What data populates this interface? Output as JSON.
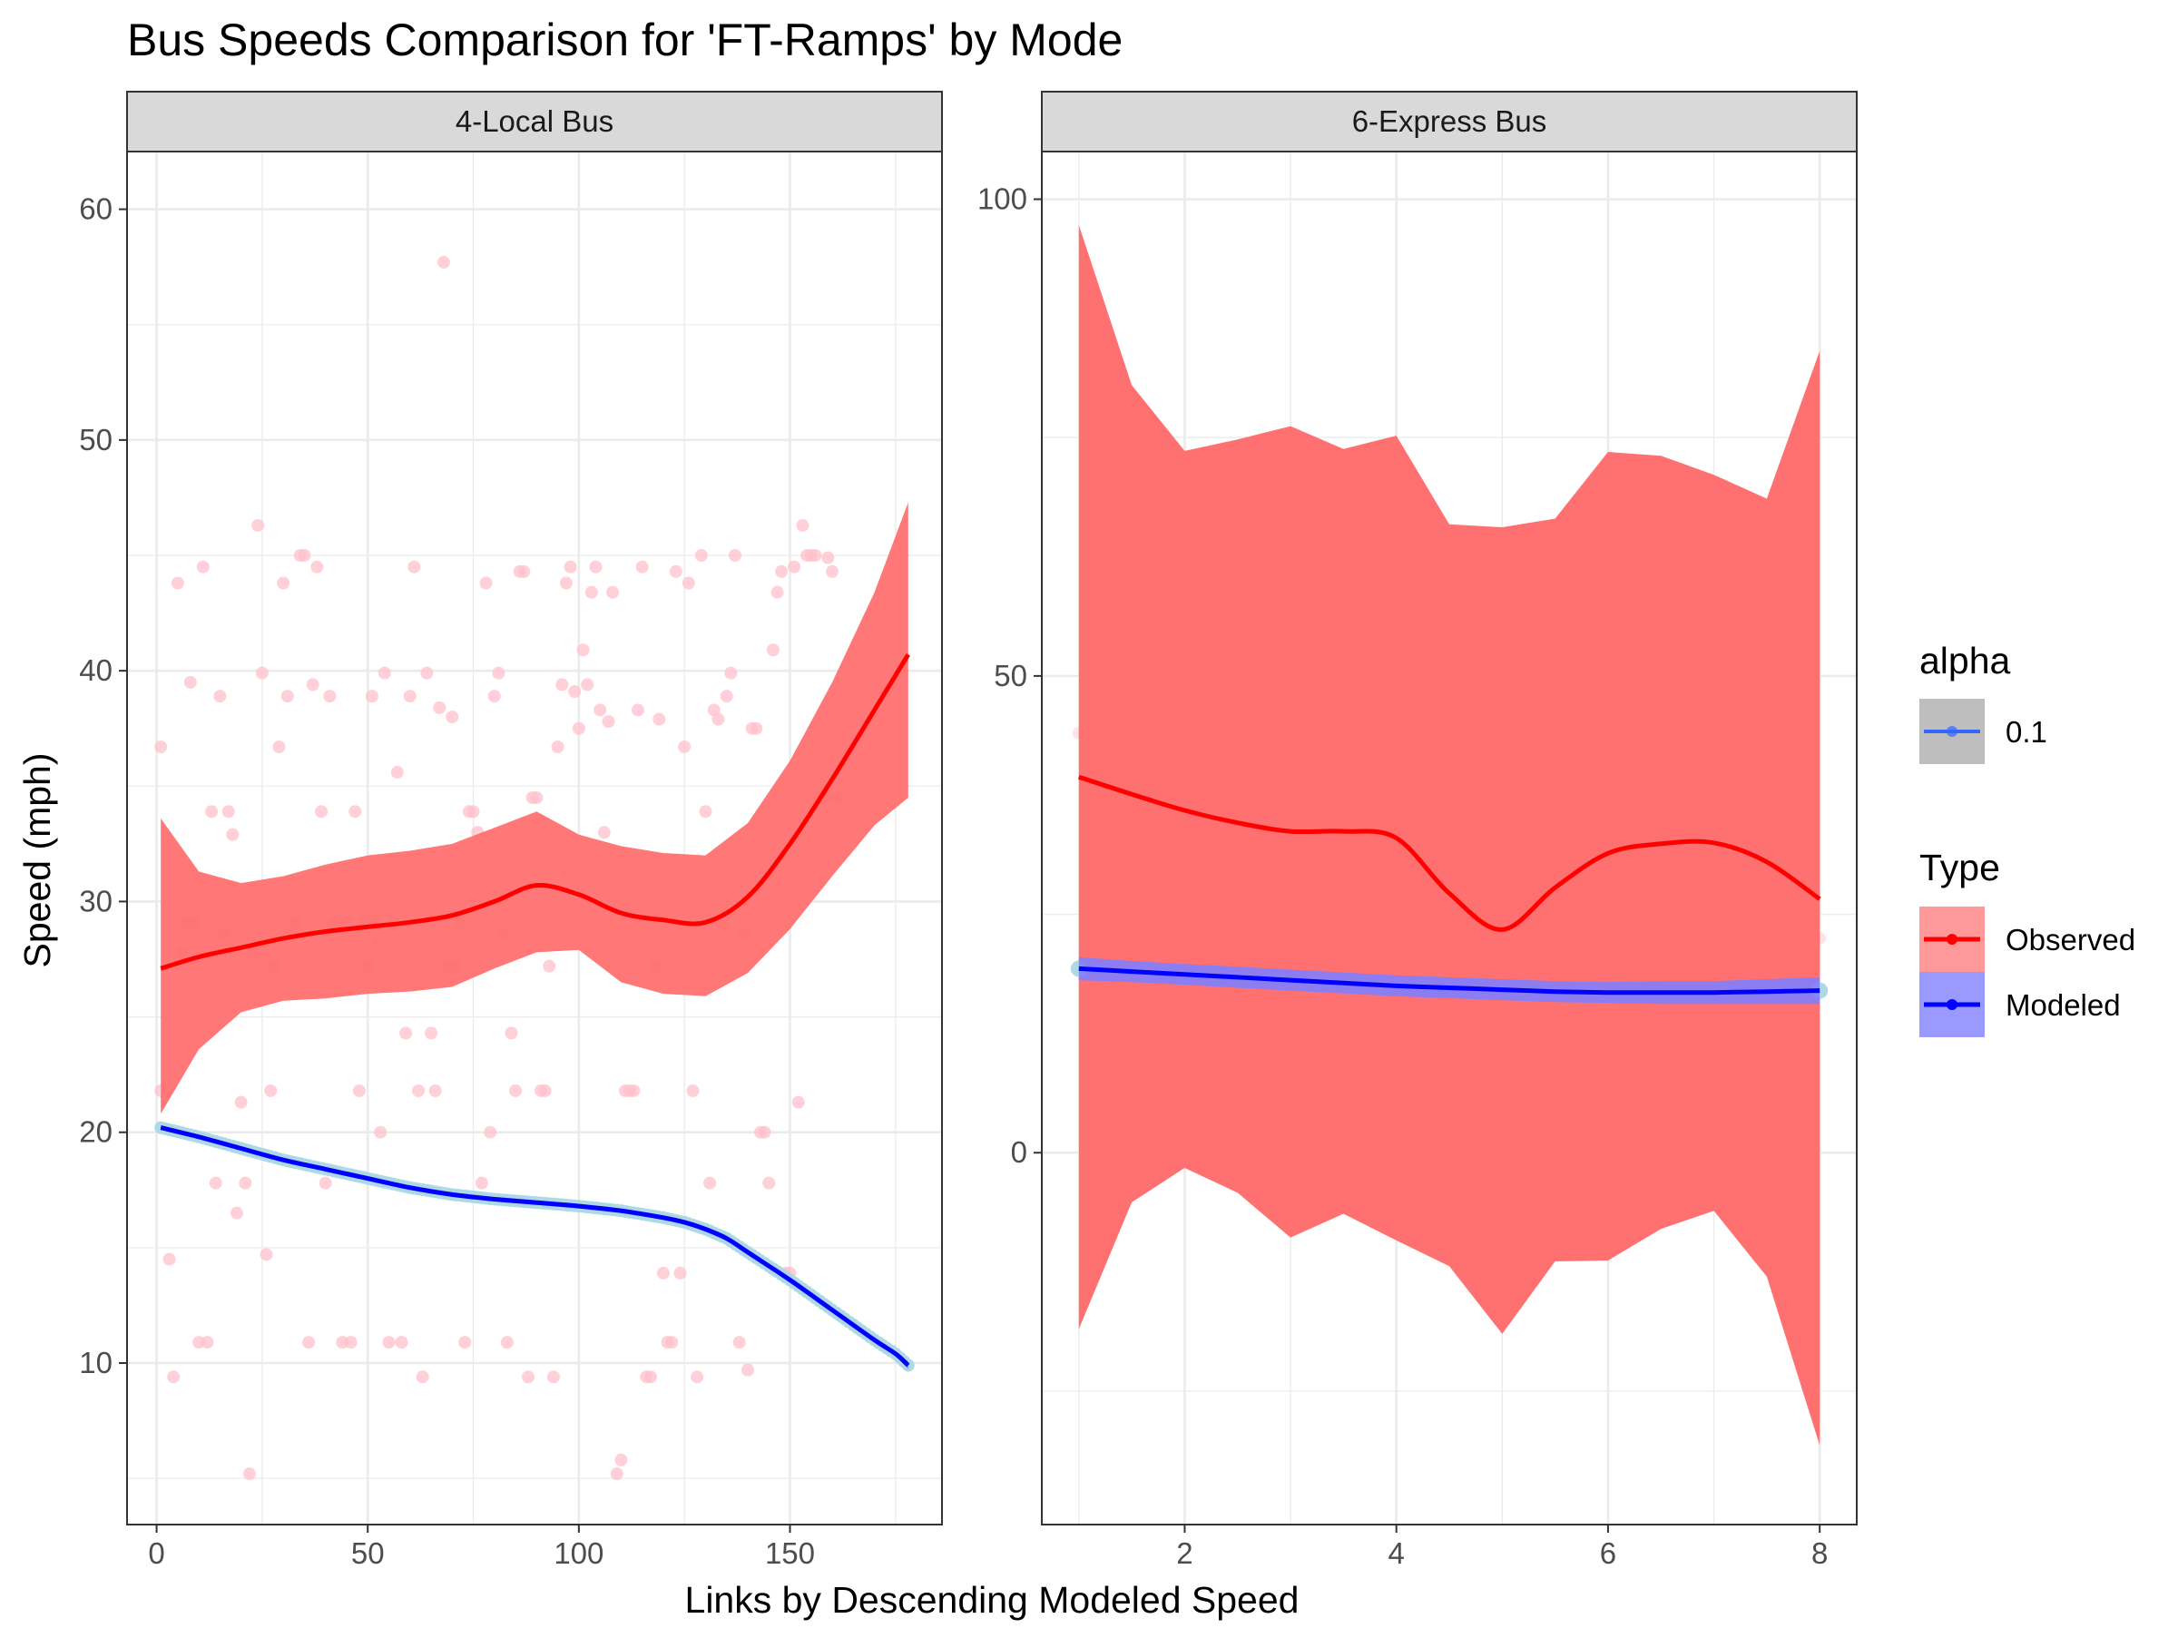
{
  "title": "Bus Speeds Comparison for 'FT-Ramps' by Mode",
  "xlabel": "Links by Descending Modeled Speed",
  "ylabel": "Speed (mph)",
  "legend": {
    "alpha": {
      "title": "alpha",
      "items": [
        {
          "label": "0.1",
          "color": "#3366FF"
        }
      ]
    },
    "type": {
      "title": "Type",
      "items": [
        {
          "label": "Observed",
          "line_color": "#FF0000",
          "fill_color": "#FF9999"
        },
        {
          "label": "Modeled",
          "line_color": "#0000FF",
          "fill_color": "#9999FF"
        }
      ]
    }
  },
  "colors": {
    "observed_line": "#FF0000",
    "observed_ribbon": "#FF7070",
    "observed_points": "#FFC0CB",
    "modeled_line": "#0000FF",
    "modeled_ribbon": "#8080FF",
    "modeled_points": "#ADD8E6",
    "grid": "#EBEBEB",
    "strip_fill": "#D9D9D9",
    "panel_border": "#333333"
  },
  "chart_data": [
    {
      "type": "line",
      "panel": "4-Local Bus",
      "xlim": [
        -7,
        186
      ],
      "ylim": [
        3,
        62.5
      ],
      "x_ticks": [
        0,
        50,
        100,
        150
      ],
      "y_ticks": [
        10,
        20,
        30,
        40,
        50,
        60
      ],
      "grid": true,
      "series": [
        {
          "name": "Observed",
          "smooth": {
            "x": [
              1,
              10,
              20,
              30,
              40,
              50,
              60,
              70,
              80,
              90,
              100,
              110,
              120,
              130,
              140,
              150,
              160,
              170,
              178
            ],
            "y": [
              27.1,
              27.6,
              28.0,
              28.4,
              28.7,
              28.9,
              29.1,
              29.4,
              30.0,
              30.7,
              30.3,
              29.5,
              29.2,
              29.1,
              30.2,
              32.5,
              35.3,
              38.3,
              40.7
            ],
            "lower": [
              20.8,
              23.6,
              25.2,
              25.7,
              25.8,
              26.0,
              26.1,
              26.3,
              27.1,
              27.8,
              27.9,
              26.5,
              26.0,
              25.9,
              26.9,
              28.8,
              31.1,
              33.3,
              34.5
            ],
            "upper": [
              33.6,
              31.3,
              30.8,
              31.1,
              31.6,
              32.0,
              32.2,
              32.5,
              33.2,
              33.9,
              32.9,
              32.4,
              32.1,
              32.0,
              33.4,
              36.1,
              39.5,
              43.4,
              47.3
            ]
          },
          "points": [
            [
              1,
              36.7
            ],
            [
              1,
              21.8
            ],
            [
              3,
              14.5
            ],
            [
              4,
              9.4
            ],
            [
              5,
              43.8
            ],
            [
              6,
              27.8
            ],
            [
              7,
              29.1
            ],
            [
              8,
              39.5
            ],
            [
              9,
              29.1
            ],
            [
              10,
              10.9
            ],
            [
              11,
              44.5
            ],
            [
              12,
              10.9
            ],
            [
              13,
              33.9
            ],
            [
              14,
              17.8
            ],
            [
              15,
              38.9
            ],
            [
              16,
              28.6
            ],
            [
              17,
              33.9
            ],
            [
              18,
              32.9
            ],
            [
              19,
              16.5
            ],
            [
              20,
              21.3
            ],
            [
              21,
              17.8
            ],
            [
              22,
              5.2
            ],
            [
              23,
              27.8
            ],
            [
              24,
              46.3
            ],
            [
              25,
              39.9
            ],
            [
              26,
              14.7
            ],
            [
              27,
              21.8
            ],
            [
              28,
              27.2
            ],
            [
              29,
              36.7
            ],
            [
              30,
              43.8
            ],
            [
              31,
              38.9
            ],
            [
              32,
              28.6
            ],
            [
              33,
              29.1
            ],
            [
              34,
              45
            ],
            [
              35,
              45
            ],
            [
              36,
              10.9
            ],
            [
              37,
              39.4
            ],
            [
              38,
              44.5
            ],
            [
              39,
              33.9
            ],
            [
              40,
              17.8
            ],
            [
              41,
              38.9
            ],
            [
              42,
              29.1
            ],
            [
              43,
              29.1
            ],
            [
              44,
              10.9
            ],
            [
              45,
              29.1
            ],
            [
              46,
              10.9
            ],
            [
              47,
              33.9
            ],
            [
              48,
              21.8
            ],
            [
              49,
              29.1
            ],
            [
              50,
              27.2
            ],
            [
              51,
              38.9
            ],
            [
              52,
              29.1
            ],
            [
              53,
              20
            ],
            [
              54,
              39.9
            ],
            [
              55,
              10.9
            ],
            [
              56,
              29.1
            ],
            [
              57,
              35.6
            ],
            [
              58,
              10.9
            ],
            [
              59,
              24.3
            ],
            [
              60,
              38.9
            ],
            [
              61,
              44.5
            ],
            [
              62,
              21.8
            ],
            [
              63,
              9.4
            ],
            [
              64,
              39.9
            ],
            [
              65,
              24.3
            ],
            [
              66,
              21.8
            ],
            [
              67,
              38.4
            ],
            [
              68,
              57.7
            ],
            [
              69,
              27.2
            ],
            [
              70,
              38
            ],
            [
              71,
              27.2
            ],
            [
              72,
              29.1
            ],
            [
              73,
              10.9
            ],
            [
              74,
              33.9
            ],
            [
              75,
              33.9
            ],
            [
              76,
              33
            ],
            [
              77,
              17.8
            ],
            [
              78,
              43.8
            ],
            [
              79,
              20
            ],
            [
              80,
              38.9
            ],
            [
              81,
              39.9
            ],
            [
              82,
              28.6
            ],
            [
              83,
              10.9
            ],
            [
              84,
              24.3
            ],
            [
              85,
              21.8
            ],
            [
              86,
              44.3
            ],
            [
              87,
              44.3
            ],
            [
              88,
              9.4
            ],
            [
              89,
              34.5
            ],
            [
              90,
              34.5
            ],
            [
              91,
              21.8
            ],
            [
              92,
              21.8
            ],
            [
              93,
              27.2
            ],
            [
              94,
              9.4
            ],
            [
              95,
              36.7
            ],
            [
              96,
              39.4
            ],
            [
              97,
              43.8
            ],
            [
              98,
              44.5
            ],
            [
              99,
              39.1
            ],
            [
              100,
              37.5
            ],
            [
              101,
              40.9
            ],
            [
              102,
              39.4
            ],
            [
              103,
              43.4
            ],
            [
              104,
              44.5
            ],
            [
              105,
              38.3
            ],
            [
              106,
              33
            ],
            [
              107,
              37.8
            ],
            [
              108,
              43.4
            ],
            [
              109,
              5.2
            ],
            [
              110,
              5.8
            ],
            [
              111,
              21.8
            ],
            [
              112,
              21.8
            ],
            [
              113,
              21.8
            ],
            [
              114,
              38.3
            ],
            [
              115,
              44.5
            ],
            [
              116,
              9.4
            ],
            [
              117,
              9.4
            ],
            [
              118,
              27.2
            ],
            [
              119,
              37.9
            ],
            [
              120,
              13.9
            ],
            [
              121,
              10.9
            ],
            [
              122,
              10.9
            ],
            [
              123,
              44.3
            ],
            [
              124,
              13.9
            ],
            [
              125,
              36.7
            ],
            [
              126,
              43.8
            ],
            [
              127,
              21.8
            ],
            [
              128,
              9.4
            ],
            [
              129,
              45
            ],
            [
              130,
              33.9
            ],
            [
              131,
              17.8
            ],
            [
              132,
              38.3
            ],
            [
              133,
              37.9
            ],
            [
              134,
              29
            ],
            [
              135,
              38.9
            ],
            [
              136,
              39.9
            ],
            [
              137,
              45
            ],
            [
              138,
              10.9
            ],
            [
              139,
              28.6
            ],
            [
              140,
              9.7
            ],
            [
              141,
              37.5
            ],
            [
              142,
              37.5
            ],
            [
              143,
              20
            ],
            [
              144,
              20
            ],
            [
              145,
              17.8
            ],
            [
              146,
              40.9
            ],
            [
              147,
              43.4
            ],
            [
              148,
              44.3
            ],
            [
              149,
              13.9
            ],
            [
              150,
              13.9
            ],
            [
              151,
              44.5
            ],
            [
              152,
              21.3
            ],
            [
              153,
              46.3
            ],
            [
              154,
              45
            ],
            [
              155,
              45
            ],
            [
              156,
              45
            ],
            [
              157,
              34.5
            ],
            [
              158,
              34.5
            ],
            [
              159,
              44.9
            ],
            [
              160,
              44.3
            ],
            [
              161,
              34.5
            ]
          ]
        },
        {
          "name": "Modeled",
          "smooth": {
            "x": [
              1,
              10,
              20,
              30,
              40,
              50,
              60,
              70,
              80,
              90,
              100,
              110,
              120,
              125,
              130,
              135,
              140,
              150,
              160,
              170,
              175,
              178
            ],
            "y": [
              20.2,
              19.8,
              19.3,
              18.8,
              18.4,
              18.0,
              17.6,
              17.3,
              17.1,
              16.95,
              16.8,
              16.6,
              16.3,
              16.1,
              15.8,
              15.4,
              14.8,
              13.6,
              12.3,
              11.0,
              10.4,
              9.9
            ],
            "lower": [
              20.1,
              19.7,
              19.2,
              18.7,
              18.3,
              17.9,
              17.5,
              17.2,
              17.0,
              16.85,
              16.7,
              16.5,
              16.2,
              16.0,
              15.7,
              15.3,
              14.7,
              13.5,
              12.2,
              10.9,
              10.3,
              9.75
            ],
            "upper": [
              20.3,
              19.9,
              19.4,
              18.9,
              18.5,
              18.1,
              17.7,
              17.4,
              17.2,
              17.05,
              16.9,
              16.7,
              16.4,
              16.2,
              15.9,
              15.5,
              14.9,
              13.7,
              12.4,
              11.1,
              10.5,
              10.05
            ]
          }
        }
      ]
    },
    {
      "type": "line",
      "panel": "6-Express Bus",
      "xlim": [
        0.65,
        8.35
      ],
      "ylim": [
        -39,
        105
      ],
      "x_ticks": [
        2,
        4,
        6,
        8
      ],
      "y_ticks": [
        0,
        50,
        100
      ],
      "grid": true,
      "series": [
        {
          "name": "Observed",
          "smooth": {
            "x": [
              1,
              1.5,
              2,
              2.5,
              3,
              3.5,
              4,
              4.5,
              5,
              5.5,
              6,
              6.5,
              7,
              7.5,
              8
            ],
            "y": [
              39.4,
              37.6,
              35.9,
              34.6,
              33.7,
              33.7,
              33.0,
              27.2,
              23.4,
              27.8,
              31.4,
              32.4,
              32.5,
              30.5,
              26.6
            ],
            "lower": [
              -18.5,
              -5.2,
              -1.6,
              -4.2,
              -8.9,
              -6.4,
              -9.2,
              -11.9,
              -19.0,
              -11.4,
              -11.3,
              -8.0,
              -6.1,
              -13.0,
              -30.7
            ],
            "upper": [
              97.3,
              80.5,
              73.6,
              74.8,
              76.2,
              73.8,
              75.2,
              65.9,
              65.6,
              66.5,
              73.5,
              73.1,
              71.1,
              68.6,
              84.1
            ]
          },
          "points": [
            [
              1,
              44
            ],
            [
              2,
              22.5
            ],
            [
              3,
              49
            ],
            [
              4,
              20.5
            ],
            [
              5,
              33
            ],
            [
              6,
              20.5
            ],
            [
              7,
              44
            ],
            [
              8,
              22.5
            ]
          ]
        },
        {
          "name": "Modeled",
          "smooth": {
            "x": [
              1,
              1.5,
              2,
              2.5,
              3,
              3.5,
              4,
              4.5,
              5,
              5.5,
              6,
              6.5,
              7,
              7.5,
              8
            ],
            "y": [
              19.3,
              19.0,
              18.7,
              18.4,
              18.1,
              17.8,
              17.5,
              17.3,
              17.1,
              16.9,
              16.8,
              16.8,
              16.8,
              16.9,
              17.0
            ],
            "lower": [
              18.1,
              17.9,
              17.6,
              17.3,
              17.0,
              16.7,
              16.4,
              16.2,
              16.0,
              15.8,
              15.7,
              15.6,
              15.6,
              15.6,
              15.6
            ],
            "upper": [
              20.5,
              20.1,
              19.8,
              19.5,
              19.2,
              18.9,
              18.6,
              18.4,
              18.2,
              18.0,
              17.9,
              18.0,
              18.0,
              18.2,
              18.4
            ]
          },
          "points": [
            [
              1,
              19.3
            ],
            [
              8,
              17.0
            ]
          ]
        }
      ]
    }
  ]
}
